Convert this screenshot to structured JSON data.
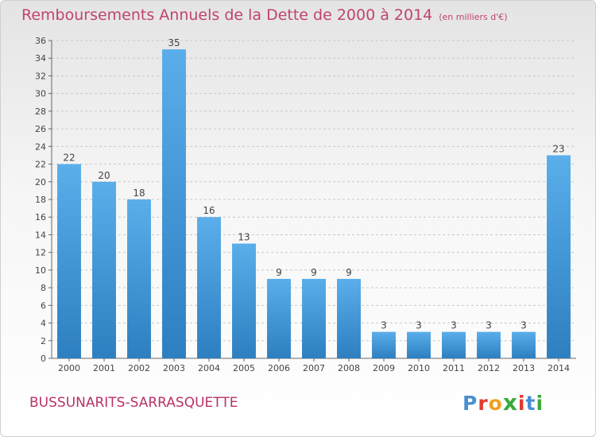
{
  "header": {
    "title": "Remboursements Annuels de la Dette de 2000 à 2014",
    "unit": "(en milliers d'€)"
  },
  "footer": {
    "town": "BUSSUNARITS-SARRASQUETTE",
    "logo": {
      "letters": [
        "P",
        "r",
        "o",
        "x",
        "i",
        "t",
        "i"
      ],
      "colors": [
        "#4a8fd1",
        "#e03a2e",
        "#f0a020",
        "#3aaa3a",
        "#e03a2e",
        "#4a8fd1",
        "#3aaa3a"
      ]
    }
  },
  "chart_data": {
    "type": "bar",
    "categories": [
      "2000",
      "2001",
      "2002",
      "2003",
      "2004",
      "2005",
      "2006",
      "2007",
      "2008",
      "2009",
      "2010",
      "2011",
      "2012",
      "2013",
      "2014"
    ],
    "values": [
      22,
      20,
      18,
      35,
      16,
      13,
      9,
      9,
      9,
      3,
      3,
      3,
      3,
      3,
      23
    ],
    "value_labels": [
      "22",
      "20",
      "18",
      "35",
      "16",
      "13",
      "9",
      "9",
      "9",
      "3",
      "3",
      "3",
      "3",
      "3",
      "23"
    ],
    "title": "Remboursements Annuels de la Dette de 2000 à 2014",
    "ylim": [
      0,
      36
    ],
    "yticks": [
      0,
      2,
      4,
      6,
      8,
      10,
      12,
      14,
      16,
      18,
      20,
      22,
      24,
      26,
      28,
      30,
      32,
      34,
      36
    ],
    "grid": true,
    "bar_color": "#3f98dc"
  }
}
